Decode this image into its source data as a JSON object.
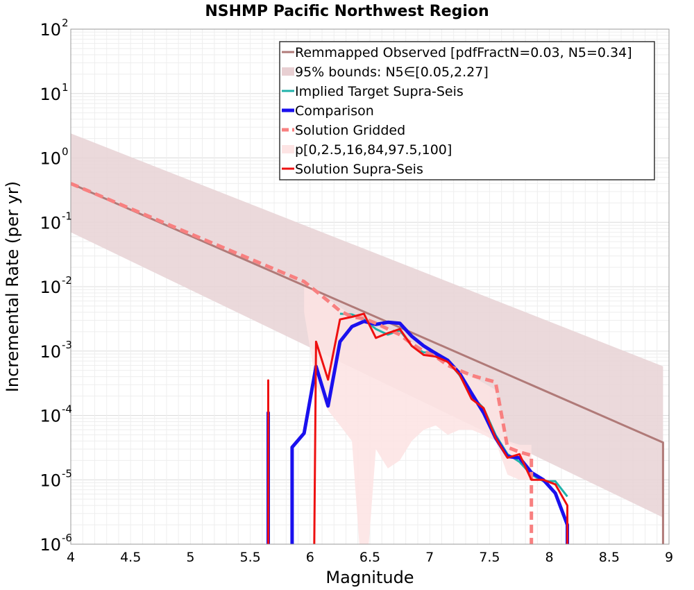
{
  "chart_data": {
    "type": "line",
    "title": "NSHMP Pacific Northwest Region",
    "xlabel": "Magnitude",
    "ylabel": "Incremental Rate (per yr)",
    "x_range": [
      4,
      9
    ],
    "y_range": [
      1e-06,
      100
    ],
    "y_scale": "log",
    "grid": true,
    "legend_position": "top-right",
    "x_ticks": [
      "4",
      "4.5",
      "5",
      "5.5",
      "6",
      "6.5",
      "7",
      "7.5",
      "8",
      "8.5",
      "9"
    ],
    "y_tick_labels": [
      {
        "base": "10",
        "exp": "-6",
        "value": 1e-06
      },
      {
        "base": "10",
        "exp": "-5",
        "value": 1e-05
      },
      {
        "base": "10",
        "exp": "-4",
        "value": 0.0001
      },
      {
        "base": "10",
        "exp": "-3",
        "value": 0.001
      },
      {
        "base": "10",
        "exp": "-2",
        "value": 0.01
      },
      {
        "base": "10",
        "exp": "-1",
        "value": 0.1
      },
      {
        "base": "10",
        "exp": "0",
        "value": 1
      },
      {
        "base": "10",
        "exp": "1",
        "value": 10
      },
      {
        "base": "10",
        "exp": "2",
        "value": 100
      }
    ],
    "legend": [
      {
        "label": "Remmapped Observed [pdfFractN=0.03, N5=0.34]",
        "color": "#b07a78",
        "style": "line"
      },
      {
        "label": "95% bounds: N5∈[0.05,2.27]",
        "color": "#e8cfd2",
        "style": "band"
      },
      {
        "label": "Implied Target Supra-Seis",
        "color": "#20b2aa",
        "style": "line"
      },
      {
        "label": "Comparison",
        "color": "#1a10ee",
        "style": "thick"
      },
      {
        "label": "Solution Gridded",
        "color": "#f88080",
        "style": "dashed"
      },
      {
        "label": "p[0,2.5,16,84,97.5,100]",
        "color": "#fde4e4",
        "style": "band"
      },
      {
        "label": "Solution Supra-Seis",
        "color": "#ee1010",
        "style": "line"
      }
    ],
    "series": [
      {
        "name": "95% bounds: N5∈[0.05,2.27]",
        "kind": "band",
        "color": "#e8d2d5",
        "x": [
          4.0,
          8.95
        ],
        "upper": [
          2.4,
          0.00058
        ],
        "lower": [
          0.07,
          2.6e-06
        ]
      },
      {
        "name": "p[0,2.5,16,84,97.5,100]",
        "kind": "band",
        "color": "#fde3e3",
        "x": [
          5.95,
          6.05,
          6.15,
          6.25,
          6.35,
          6.45,
          6.55,
          6.65,
          6.75,
          6.85,
          6.95,
          7.05,
          7.15,
          7.25,
          7.35,
          7.45,
          7.55,
          7.65,
          7.75,
          7.85
        ],
        "upper": [
          0.012,
          0.009,
          0.0065,
          0.0048,
          0.0036,
          0.0028,
          0.0024,
          0.0022,
          0.0019,
          0.0014,
          0.0011,
          0.00085,
          0.0007,
          0.0005,
          0.0004,
          0.00032,
          0.00025,
          4e-05,
          3.5e-05,
          3.5e-05
        ],
        "lower": [
          0.004,
          0.0003,
          0.00012,
          7e-05,
          4e-05,
          1e-09,
          3e-05,
          1.5e-05,
          2e-05,
          4e-05,
          6e-05,
          7e-05,
          5e-05,
          6e-05,
          6e-05,
          5e-05,
          4e-05,
          1.2e-05,
          1e-05,
          1e-05
        ]
      },
      {
        "name": "Remmapped Observed [pdfFractN=0.03, N5=0.34]",
        "kind": "line",
        "color": "#b07a78",
        "width": 3,
        "x": [
          4.0,
          8.95,
          8.95
        ],
        "y": [
          0.4,
          3.8e-05,
          1e-09
        ]
      },
      {
        "name": "Implied Target Supra-Seis",
        "kind": "line",
        "color": "#20b2aa",
        "width": 3,
        "x": [
          6.25,
          6.35,
          6.45,
          6.55,
          6.65,
          6.75,
          6.85,
          6.95,
          7.05,
          7.15,
          7.25,
          7.35,
          7.45,
          7.55,
          7.65,
          7.75,
          7.85,
          7.95,
          8.05,
          8.15
        ],
        "y": [
          0.0038,
          0.0037,
          0.0031,
          0.0022,
          0.0018,
          0.0021,
          0.0012,
          0.00095,
          0.00095,
          0.0007,
          0.00042,
          0.0002,
          0.00013,
          5e-05,
          2.5e-05,
          1.9e-05,
          1.2e-05,
          9.5e-06,
          9.5e-06,
          5.5e-06
        ]
      },
      {
        "name": "Comparison",
        "kind": "line",
        "color": "#1a10ee",
        "width": 5,
        "segments": [
          {
            "x": [
              5.65,
              5.65,
              5.65
            ],
            "y": [
              1e-09,
              0.00011,
              1e-09
            ]
          },
          {
            "x": [
              5.85,
              5.85,
              5.95,
              6.05,
              6.15,
              6.25,
              6.35,
              6.45,
              6.55,
              6.65,
              6.75,
              6.85,
              6.95,
              7.05,
              7.15,
              7.25,
              7.35,
              7.45,
              7.55,
              7.65,
              7.75,
              7.85,
              7.95,
              8.05,
              8.15,
              8.15
            ],
            "y": [
              1e-09,
              3.2e-05,
              5.3e-05,
              0.00058,
              0.00014,
              0.0014,
              0.0024,
              0.0029,
              0.0026,
              0.0028,
              0.0027,
              0.0017,
              0.0012,
              0.00092,
              0.00072,
              0.00045,
              0.00022,
              0.00011,
              4.5e-05,
              2.3e-05,
              2.2e-05,
              1.3e-05,
              1e-05,
              6.2e-06,
              2e-06,
              1e-09
            ]
          }
        ]
      },
      {
        "name": "Solution Gridded",
        "kind": "dashed",
        "color": "#f88080",
        "width": 5,
        "x": [
          4.0,
          5.95,
          6.05,
          6.15,
          6.25,
          6.35,
          6.45,
          6.55,
          6.65,
          6.75,
          6.85,
          6.95,
          7.05,
          7.15,
          7.25,
          7.35,
          7.45,
          7.55,
          7.65,
          7.75,
          7.85,
          7.85
        ],
        "y": [
          0.4,
          0.012,
          0.0085,
          0.006,
          0.0042,
          0.0034,
          0.0032,
          0.0027,
          0.0022,
          0.0018,
          0.0013,
          0.001,
          0.00082,
          0.0006,
          0.0005,
          0.00042,
          0.00037,
          0.00033,
          3.2e-05,
          2.7e-05,
          2.4e-05,
          1e-09
        ]
      },
      {
        "name": "Solution Supra-Seis",
        "kind": "line",
        "color": "#ee1010",
        "width": 3,
        "segments": [
          {
            "x": [
              5.65,
              5.65,
              5.65
            ],
            "y": [
              1e-09,
              0.00035,
              1e-09
            ]
          },
          {
            "x": [
              6.03,
              6.05,
              6.15,
              6.25,
              6.35,
              6.45,
              6.55,
              6.65,
              6.75,
              6.85,
              6.95,
              7.05,
              7.15,
              7.25,
              7.35,
              7.45,
              7.55,
              7.65,
              7.75,
              7.85,
              7.95,
              8.05,
              8.15,
              8.15
            ],
            "y": [
              1e-09,
              0.0014,
              0.00036,
              0.0031,
              0.0034,
              0.0038,
              0.0016,
              0.0019,
              0.0022,
              0.0012,
              0.00087,
              0.00082,
              0.00068,
              0.00043,
              0.00018,
              0.00013,
              4.5e-05,
              2.2e-05,
              2.5e-05,
              1e-05,
              1e-05,
              8.5e-06,
              4e-06,
              1e-09
            ]
          }
        ]
      }
    ]
  }
}
